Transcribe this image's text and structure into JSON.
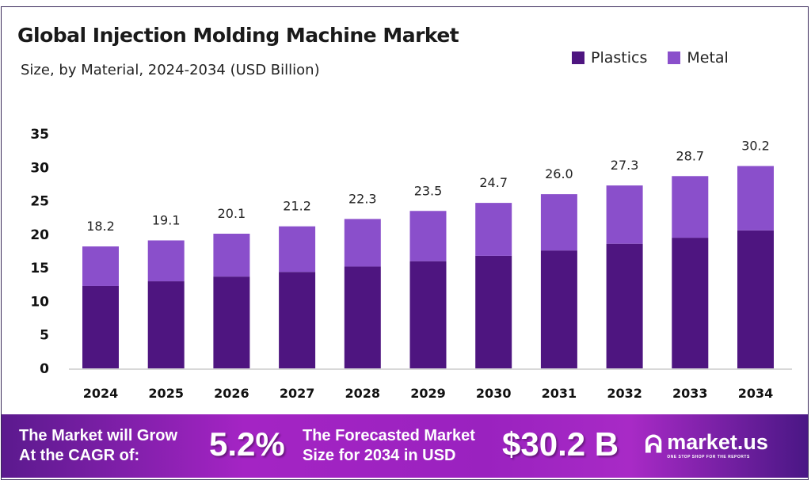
{
  "chart_data": {
    "type": "bar",
    "stacked": true,
    "title": "Global Injection Molding Machine Market",
    "subtitle": "Size, by Material, 2024-2034 (USD Billion)",
    "categories": [
      "2024",
      "2025",
      "2026",
      "2027",
      "2028",
      "2029",
      "2030",
      "2031",
      "2032",
      "2033",
      "2034"
    ],
    "series": [
      {
        "name": "Plastics",
        "color": "#4e1580",
        "values": [
          12.3,
          13.0,
          13.7,
          14.4,
          15.2,
          16.0,
          16.8,
          17.6,
          18.6,
          19.5,
          20.6
        ]
      },
      {
        "name": "Metal",
        "color": "#8a4fcb",
        "values": [
          5.9,
          6.1,
          6.4,
          6.8,
          7.1,
          7.5,
          7.9,
          8.4,
          8.7,
          9.2,
          9.6
        ]
      }
    ],
    "totals": [
      "18.2",
      "19.1",
      "20.1",
      "21.2",
      "22.3",
      "23.5",
      "24.7",
      "26.0",
      "27.3",
      "28.7",
      "30.2"
    ],
    "yticks": [
      "0",
      "5",
      "10",
      "15",
      "20",
      "25",
      "30",
      "35"
    ],
    "ylim": [
      0,
      35
    ],
    "grid": false,
    "legend_position": "top-right"
  },
  "banner": {
    "grow_line1": "The Market will Grow",
    "grow_line2": "At the CAGR of:",
    "cagr": "5.2%",
    "forecast_line1": "The Forecasted Market",
    "forecast_line2": "Size for 2034 in USD",
    "forecast_value": "$30.2 B",
    "logo_name": "market.us",
    "logo_tagline": "ONE STOP SHOP FOR THE REPORTS"
  }
}
